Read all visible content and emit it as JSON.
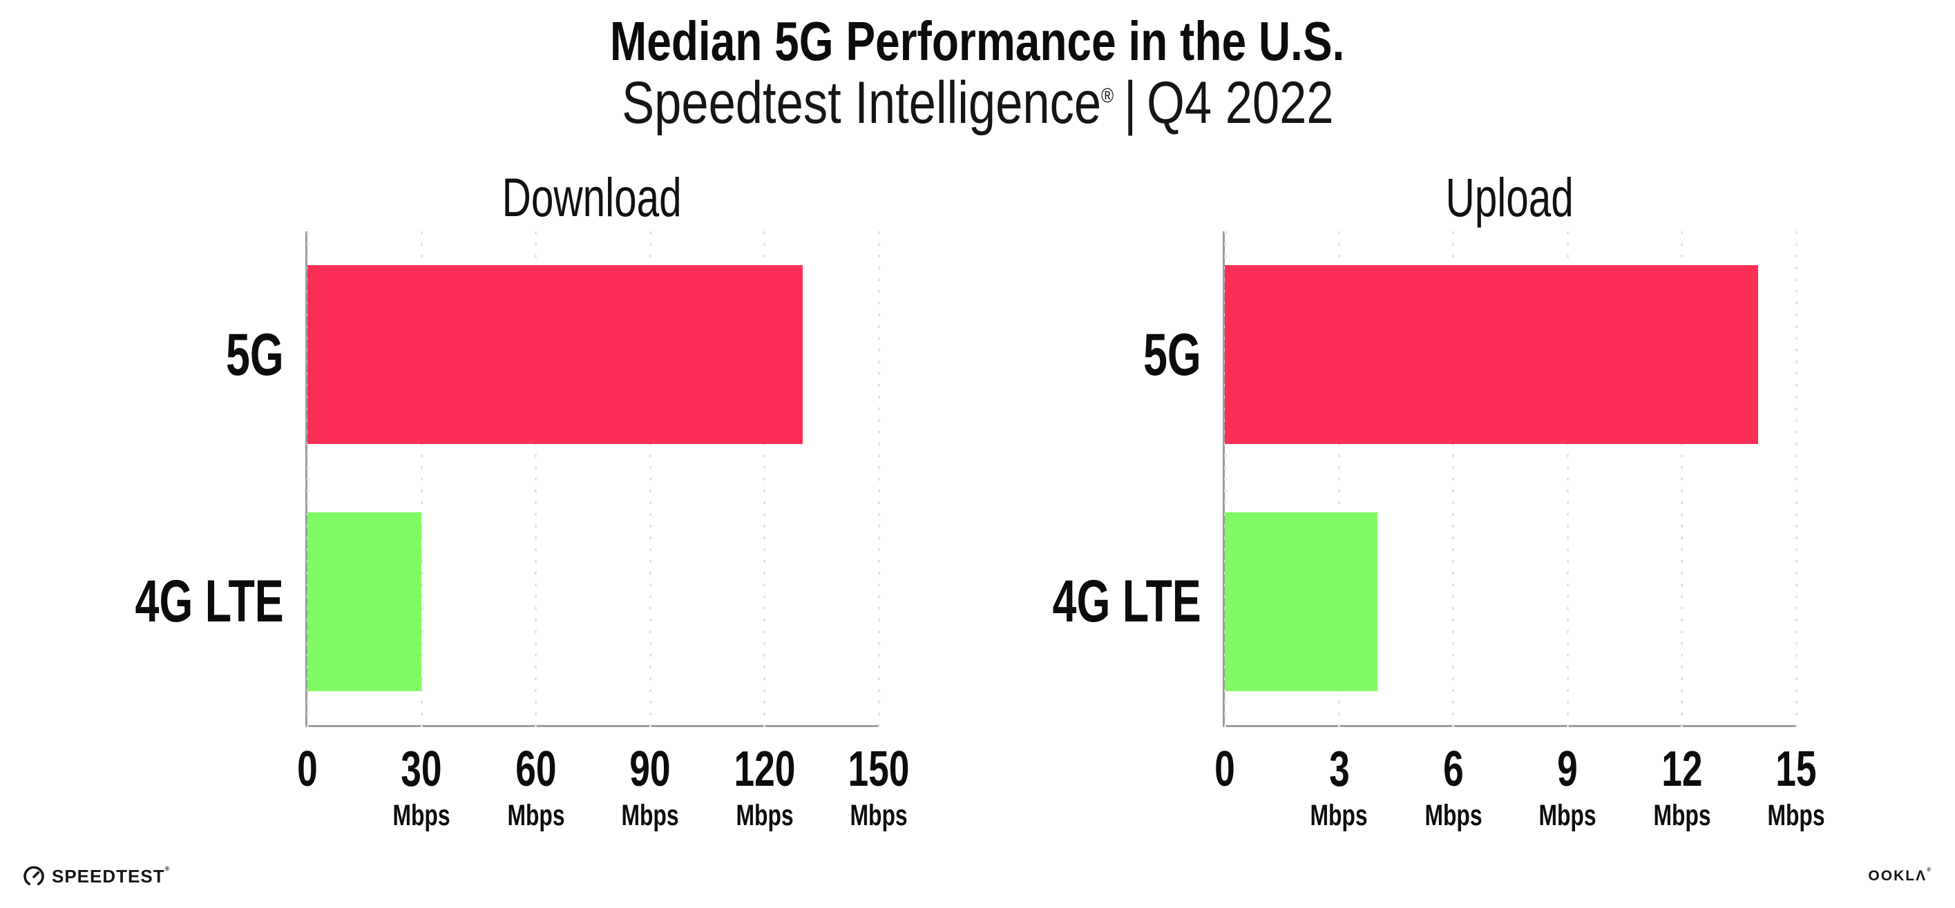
{
  "header": {
    "title": "Median 5G Performance in the U.S.",
    "subtitle_brand": "Speedtest Intelligence",
    "subtitle_reg": "®",
    "subtitle_separator": "|",
    "subtitle_period": "Q4 2022"
  },
  "chart_data": [
    {
      "type": "bar",
      "orientation": "horizontal",
      "title": "Download",
      "categories": [
        "5G",
        "4G LTE"
      ],
      "values": [
        130,
        30
      ],
      "unit": "Mbps",
      "bar_colors": [
        "#fc3057",
        "#80fa64"
      ],
      "xlim": [
        0,
        150
      ],
      "ticks": [
        {
          "value": 0,
          "label": "0",
          "unit": ""
        },
        {
          "value": 30,
          "label": "30",
          "unit": "Mbps"
        },
        {
          "value": 60,
          "label": "60",
          "unit": "Mbps"
        },
        {
          "value": 90,
          "label": "90",
          "unit": "Mbps"
        },
        {
          "value": 120,
          "label": "120",
          "unit": "Mbps"
        },
        {
          "value": 150,
          "label": "150",
          "unit": "Mbps"
        }
      ],
      "grid": "dotted-vertical",
      "legend": "none"
    },
    {
      "type": "bar",
      "orientation": "horizontal",
      "title": "Upload",
      "categories": [
        "5G",
        "4G LTE"
      ],
      "values": [
        14,
        4
      ],
      "unit": "Mbps",
      "bar_colors": [
        "#fc3057",
        "#80fa64"
      ],
      "xlim": [
        0,
        15
      ],
      "ticks": [
        {
          "value": 0,
          "label": "0",
          "unit": ""
        },
        {
          "value": 3,
          "label": "3",
          "unit": "Mbps"
        },
        {
          "value": 6,
          "label": "6",
          "unit": "Mbps"
        },
        {
          "value": 9,
          "label": "9",
          "unit": "Mbps"
        },
        {
          "value": 12,
          "label": "12",
          "unit": "Mbps"
        },
        {
          "value": 15,
          "label": "15",
          "unit": "Mbps"
        }
      ],
      "grid": "dotted-vertical",
      "legend": "none"
    }
  ],
  "footer": {
    "speedtest_label": "SPEEDTEST",
    "speedtest_reg": "®",
    "speedtest_icon": "gauge-icon",
    "ookla_label": "OOKLΛ",
    "ookla_reg": "®"
  },
  "colors": {
    "bar_5g": "#fc3057",
    "bar_4g_lte": "#80fa64",
    "axis": "#9b9b9b",
    "gridline_dots": "#e1e1eb",
    "text": "#0c0c0c",
    "background": "#ffffff"
  }
}
